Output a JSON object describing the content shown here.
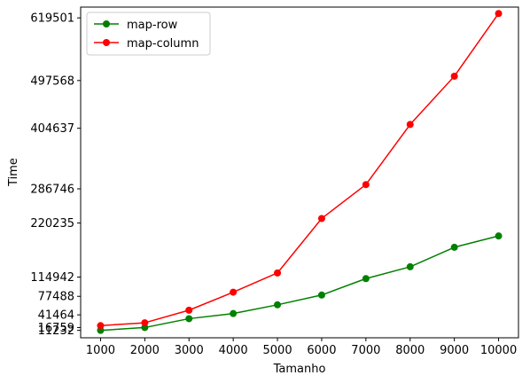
{
  "chart_data": {
    "type": "line",
    "title": "",
    "xlabel": "Tamanho",
    "ylabel": "Time",
    "x": [
      1000,
      2000,
      3000,
      4000,
      5000,
      6000,
      7000,
      8000,
      9000,
      10000
    ],
    "xticks": [
      "1000",
      "2000",
      "3000",
      "4000",
      "5000",
      "6000",
      "7000",
      "8000",
      "9000",
      "10000"
    ],
    "yticks": [
      11232,
      16759,
      41464,
      77488,
      114942,
      220235,
      286746,
      404637,
      497568,
      619501
    ],
    "xlim": [
      550,
      10450
    ],
    "ylim": [
      -3200,
      640500
    ],
    "grid": false,
    "legend_position": "upper-left",
    "series": [
      {
        "name": "map-row",
        "color": "#008000",
        "marker": "circle",
        "values": [
          11232,
          16759,
          34000,
          44000,
          61000,
          80000,
          112000,
          135000,
          173000,
          195000
        ]
      },
      {
        "name": "map-column",
        "color": "#ff0000",
        "marker": "circle",
        "values": [
          20500,
          26000,
          50500,
          85500,
          123000,
          229000,
          295000,
          412000,
          506000,
          628000
        ]
      }
    ]
  }
}
